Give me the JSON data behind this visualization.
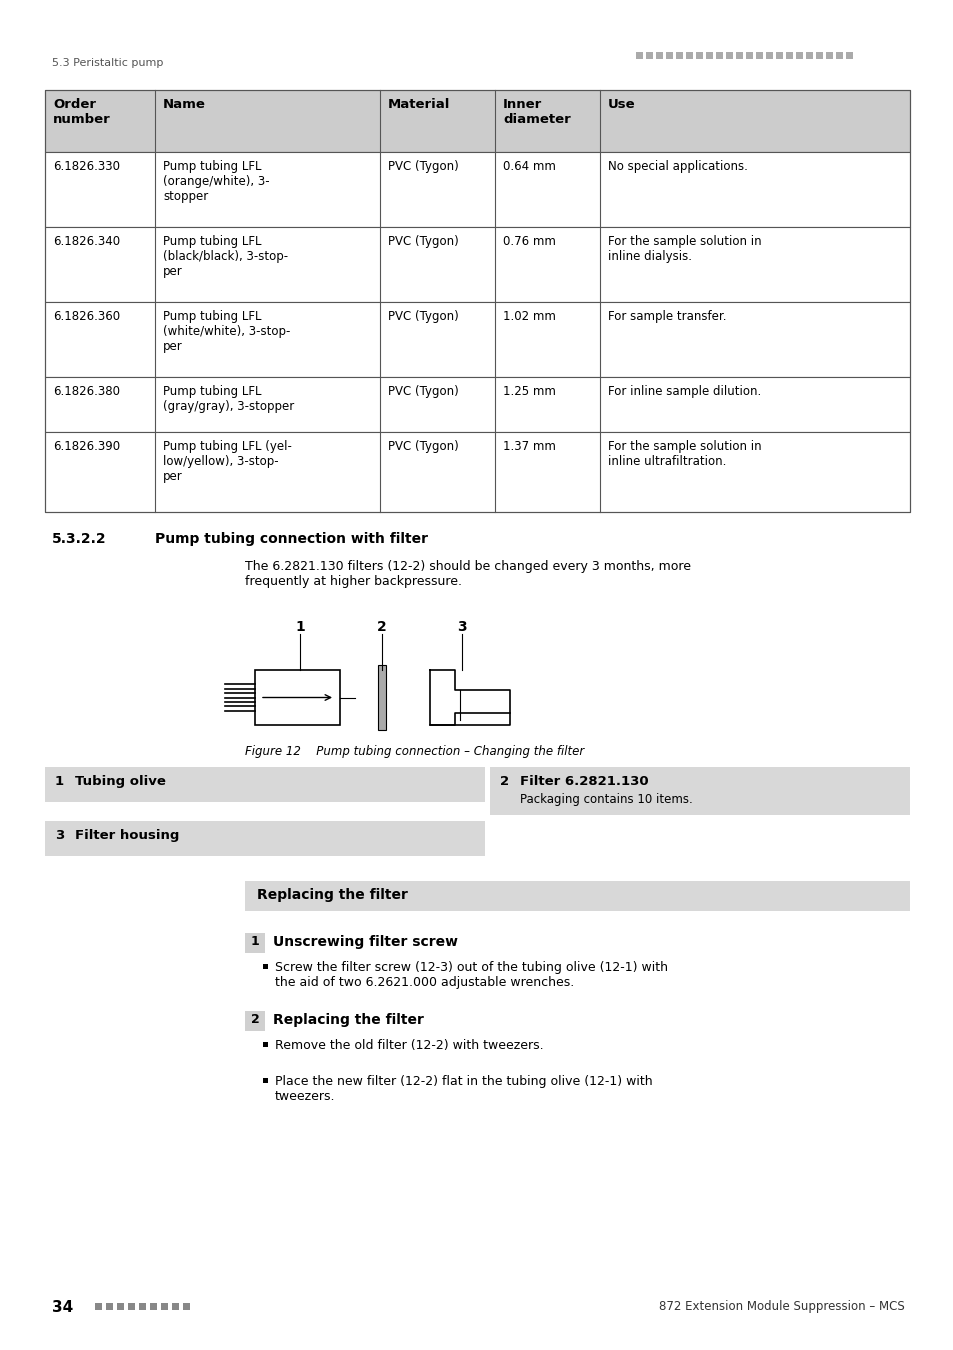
{
  "header_text": "5.3 Peristaltic pump",
  "page_number": "34",
  "page_footer_right": "872 Extension Module Suppression – MCS",
  "section_number": "5.3.2.2",
  "section_title": "Pump tubing connection with filter",
  "section_intro_line1": "The 6.2821.130 filters (12-⁠​⁠​2​⁠​) should be changed every 3 months, more",
  "section_intro_line2": "frequently at higher backpressure.",
  "figure_label": "Figure 12",
  "figure_caption_rest": "   Pump tubing connection – Changing the filter",
  "table_header_bg": "#cccccc",
  "table_headers": [
    "Order\nnumber",
    "Name",
    "Material",
    "Inner\ndiameter",
    "Use"
  ],
  "table_rows": [
    [
      "6.1826.330",
      "Pump tubing LFL\n(orange/white), 3-\nstopper",
      "PVC (Tygon)",
      "0.64 mm",
      "No special applications."
    ],
    [
      "6.1826.340",
      "Pump tubing LFL\n(black/black), 3-stop-\nper",
      "PVC (Tygon)",
      "0.76 mm",
      "For the sample solution in\ninline dialysis."
    ],
    [
      "6.1826.360",
      "Pump tubing LFL\n(white/white), 3-stop-\nper",
      "PVC (Tygon)",
      "1.02 mm",
      "For sample transfer."
    ],
    [
      "6.1826.380",
      "Pump tubing LFL\n(gray/gray), 3-stopper",
      "PVC (Tygon)",
      "1.25 mm",
      "For inline sample dilution."
    ],
    [
      "6.1826.390",
      "Pump tubing LFL (yel-\nlow/yellow), 3-stop-\nper",
      "PVC (Tygon)",
      "1.37 mm",
      "For the sample solution in\ninline ultrafiltration."
    ]
  ],
  "replacing_header": "Replacing the filter",
  "step1_title": "Unscrewing filter screw",
  "step1_bullet": "Screw the filter screw (12-3) out of the tubing olive (12-1) with\nthe aid of two 6.2621.000 adjustable wrenches.",
  "step2_title": "Replacing the filter",
  "step2_bullets": [
    "Remove the old filter (12-2) with tweezers.",
    "Place the new filter (12-2) flat in the tubing olive (12-1) with\ntweezers."
  ],
  "bg_color": "#ffffff",
  "legend_bg": "#d8d8d8",
  "replacing_bg": "#d8d8d8",
  "step_badge_bg": "#d0d0d0"
}
